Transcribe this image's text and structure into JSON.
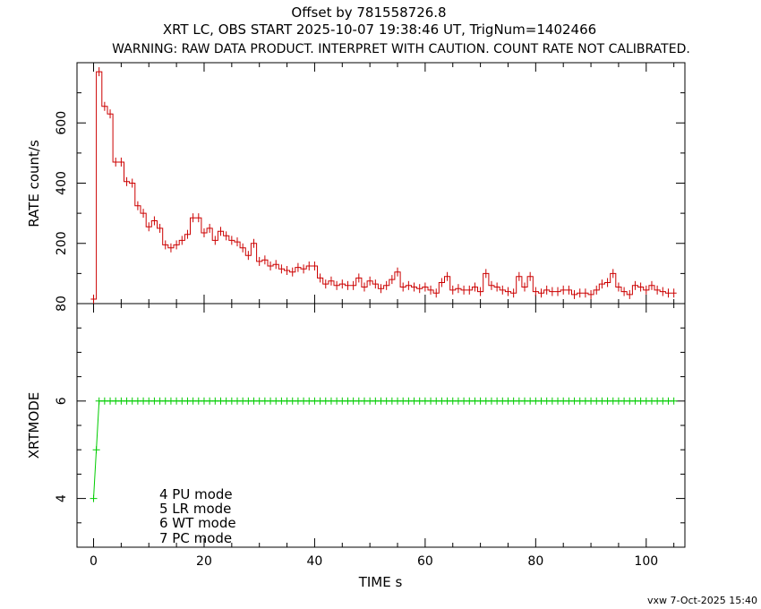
{
  "header": {
    "line1": "Offset by 781558726.8",
    "line2": "XRT LC, OBS START 2025-10-07 19:38:46 UT, TrigNum=1402466",
    "line3": "WARNING: RAW DATA PRODUCT. INTERPRET WITH CAUTION. COUNT RATE NOT CALIBRATED."
  },
  "footer": {
    "stamp": "vxw  7-Oct-2025 15:40"
  },
  "legend": [
    "4 PU mode",
    "5 LR mode",
    "6 WT mode",
    "7 PC mode"
  ],
  "chart_data": [
    {
      "type": "line",
      "panel": "top",
      "ylabel": "RATE  count/s",
      "xlim": [
        -3,
        107
      ],
      "ylim": [
        0,
        800
      ],
      "yticks": [
        200,
        400,
        600
      ],
      "color": "#cc0000",
      "style": "step with error bars",
      "x": [
        0,
        1,
        2,
        3,
        4,
        5,
        6,
        7,
        8,
        9,
        10,
        11,
        12,
        13,
        14,
        15,
        16,
        17,
        18,
        19,
        20,
        21,
        22,
        23,
        24,
        25,
        26,
        27,
        28,
        29,
        30,
        31,
        32,
        33,
        34,
        35,
        36,
        37,
        38,
        39,
        40,
        41,
        42,
        43,
        44,
        45,
        46,
        47,
        48,
        49,
        50,
        51,
        52,
        53,
        54,
        55,
        56,
        57,
        58,
        59,
        60,
        61,
        62,
        63,
        64,
        65,
        66,
        67,
        68,
        69,
        70,
        71,
        72,
        73,
        74,
        75,
        76,
        77,
        78,
        79,
        80,
        81,
        82,
        83,
        84,
        85,
        86,
        87,
        88,
        89,
        90,
        91,
        92,
        93,
        94,
        95,
        96,
        97,
        98,
        99,
        100,
        101,
        102,
        103,
        104,
        105
      ],
      "y": [
        15,
        770,
        655,
        630,
        470,
        470,
        405,
        400,
        325,
        300,
        255,
        275,
        250,
        195,
        185,
        195,
        210,
        230,
        285,
        285,
        235,
        250,
        210,
        240,
        225,
        210,
        205,
        185,
        160,
        200,
        140,
        145,
        125,
        130,
        115,
        110,
        105,
        120,
        115,
        125,
        125,
        85,
        65,
        75,
        60,
        65,
        60,
        60,
        85,
        55,
        75,
        65,
        50,
        60,
        80,
        105,
        55,
        60,
        55,
        50,
        55,
        45,
        35,
        70,
        90,
        45,
        50,
        45,
        45,
        55,
        40,
        100,
        60,
        55,
        45,
        40,
        35,
        90,
        55,
        90,
        40,
        35,
        45,
        40,
        40,
        45,
        45,
        30,
        35,
        35,
        30,
        45,
        65,
        70,
        100,
        55,
        40,
        30,
        60,
        55,
        45,
        60,
        45,
        40,
        35,
        35
      ]
    },
    {
      "type": "line",
      "panel": "bottom",
      "ylabel": "XRTMODE",
      "xlabel": "TIME  s",
      "xlim": [
        -3,
        107
      ],
      "ylim": [
        3,
        8
      ],
      "yticks": [
        4,
        6
      ],
      "xticks": [
        0,
        20,
        40,
        60,
        80,
        100
      ],
      "color": "#00cc00",
      "style": "step with markers",
      "x": [
        0,
        0.5,
        1,
        2,
        3,
        4,
        5,
        6,
        7,
        8,
        9,
        10,
        11,
        12,
        13,
        14,
        15,
        16,
        17,
        18,
        19,
        20,
        21,
        22,
        23,
        24,
        25,
        26,
        27,
        28,
        29,
        30,
        31,
        32,
        33,
        34,
        35,
        36,
        37,
        38,
        39,
        40,
        41,
        42,
        43,
        44,
        45,
        46,
        47,
        48,
        49,
        50,
        51,
        52,
        53,
        54,
        55,
        56,
        57,
        58,
        59,
        60,
        61,
        62,
        63,
        64,
        65,
        66,
        67,
        68,
        69,
        70,
        71,
        72,
        73,
        74,
        75,
        76,
        77,
        78,
        79,
        80,
        81,
        82,
        83,
        84,
        85,
        86,
        87,
        88,
        89,
        90,
        91,
        92,
        93,
        94,
        95,
        96,
        97,
        98,
        99,
        100,
        101,
        102,
        103,
        104,
        105
      ],
      "y": [
        4,
        5,
        6,
        6,
        6,
        6,
        6,
        6,
        6,
        6,
        6,
        6,
        6,
        6,
        6,
        6,
        6,
        6,
        6,
        6,
        6,
        6,
        6,
        6,
        6,
        6,
        6,
        6,
        6,
        6,
        6,
        6,
        6,
        6,
        6,
        6,
        6,
        6,
        6,
        6,
        6,
        6,
        6,
        6,
        6,
        6,
        6,
        6,
        6,
        6,
        6,
        6,
        6,
        6,
        6,
        6,
        6,
        6,
        6,
        6,
        6,
        6,
        6,
        6,
        6,
        6,
        6,
        6,
        6,
        6,
        6,
        6,
        6,
        6,
        6,
        6,
        6,
        6,
        6,
        6,
        6,
        6,
        6,
        6,
        6,
        6,
        6,
        6,
        6,
        6,
        6,
        6,
        6,
        6,
        6,
        6,
        6,
        6,
        6,
        6,
        6,
        6,
        6,
        6,
        6,
        6,
        6
      ]
    }
  ]
}
